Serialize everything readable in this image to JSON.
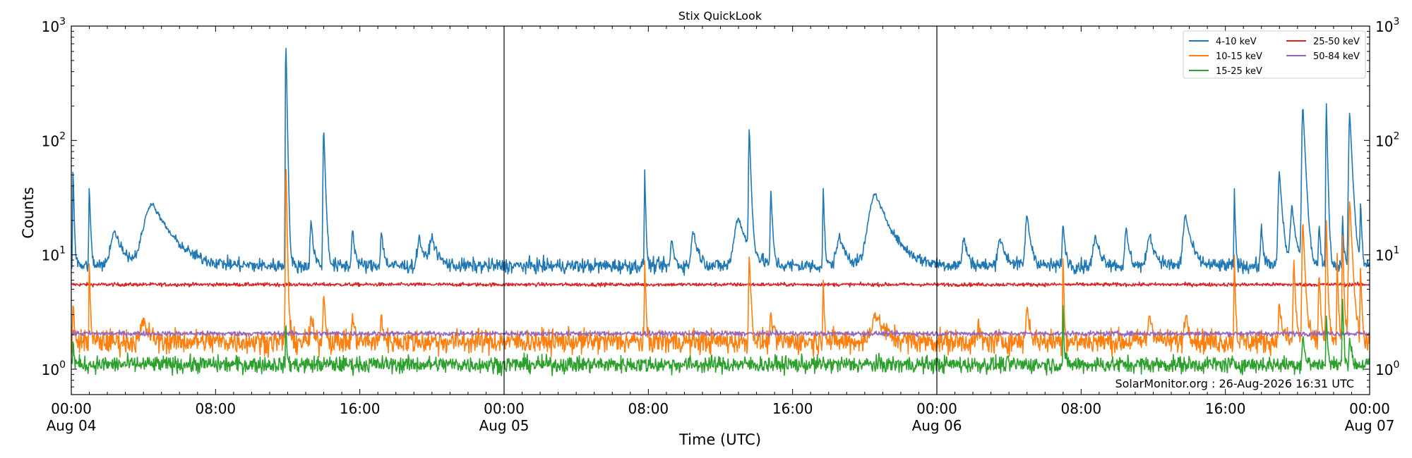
{
  "chart_data": {
    "type": "line",
    "title": "Stix QuickLook",
    "xlabel": "Time (UTC)",
    "ylabel": "Counts",
    "yscale": "log",
    "ylim": [
      0.6,
      1000
    ],
    "xlim_hours": [
      0,
      72
    ],
    "y_ticks": [
      {
        "value": 1,
        "base": "10",
        "exp": "0"
      },
      {
        "value": 10,
        "base": "10",
        "exp": "1"
      },
      {
        "value": 100,
        "base": "10",
        "exp": "2"
      },
      {
        "value": 1000,
        "base": "10",
        "exp": "3"
      }
    ],
    "x_ticks": [
      {
        "hour": 0,
        "time": "00:00",
        "date": "Aug 04"
      },
      {
        "hour": 8,
        "time": "08:00",
        "date": ""
      },
      {
        "hour": 16,
        "time": "16:00",
        "date": ""
      },
      {
        "hour": 24,
        "time": "00:00",
        "date": "Aug 05"
      },
      {
        "hour": 32,
        "time": "08:00",
        "date": ""
      },
      {
        "hour": 40,
        "time": "16:00",
        "date": ""
      },
      {
        "hour": 48,
        "time": "00:00",
        "date": "Aug 06"
      },
      {
        "hour": 56,
        "time": "08:00",
        "date": ""
      },
      {
        "hour": 64,
        "time": "16:00",
        "date": ""
      },
      {
        "hour": 72,
        "time": "00:00",
        "date": "Aug 07"
      }
    ],
    "day_boundaries_hours": [
      24,
      48
    ],
    "legend_position": "top-right",
    "credit": "SolarMonitor.org : 26-Aug-2026 16:31 UTC",
    "series": [
      {
        "name": "4-10 keV",
        "color": "#1f77b4",
        "baseline": 8,
        "noise": 0.06,
        "events": [
          [
            0.1,
            58,
            0.05
          ],
          [
            1.0,
            40,
            0.06
          ],
          [
            2.4,
            16,
            0.5
          ],
          [
            4.5,
            28,
            1.0
          ],
          [
            11.9,
            780,
            0.05
          ],
          [
            13.3,
            20,
            0.12
          ],
          [
            14.0,
            130,
            0.08
          ],
          [
            15.6,
            17,
            0.12
          ],
          [
            17.2,
            16,
            0.12
          ],
          [
            19.3,
            14,
            0.25
          ],
          [
            20.0,
            14,
            0.3
          ],
          [
            31.8,
            56,
            0.05
          ],
          [
            33.3,
            14,
            0.12
          ],
          [
            34.5,
            16,
            0.25
          ],
          [
            37.0,
            21,
            0.5
          ],
          [
            37.6,
            126,
            0.08
          ],
          [
            38.8,
            37,
            0.08
          ],
          [
            41.7,
            38,
            0.06
          ],
          [
            42.6,
            14,
            0.4
          ],
          [
            44.6,
            34,
            0.8
          ],
          [
            49.5,
            14,
            0.2
          ],
          [
            51.5,
            14,
            0.3
          ],
          [
            53.0,
            22,
            0.2
          ],
          [
            55.0,
            18,
            0.12
          ],
          [
            56.8,
            14,
            0.3
          ],
          [
            58.5,
            17,
            0.15
          ],
          [
            59.8,
            15,
            0.3
          ],
          [
            61.8,
            22,
            0.3
          ],
          [
            64.5,
            37,
            0.05
          ],
          [
            66.0,
            18,
            0.1
          ],
          [
            67.0,
            53,
            0.15
          ],
          [
            67.7,
            26,
            0.2
          ],
          [
            68.3,
            200,
            0.12
          ],
          [
            69.2,
            18,
            0.08
          ],
          [
            69.6,
            210,
            0.06
          ],
          [
            70.5,
            22,
            0.06
          ],
          [
            70.9,
            175,
            0.12
          ],
          [
            71.5,
            29,
            0.06
          ]
        ]
      },
      {
        "name": "10-15 keV",
        "color": "#ff7f0e",
        "baseline": 1.75,
        "noise": 0.1,
        "events": [
          [
            0.1,
            4,
            0.05
          ],
          [
            1.0,
            10,
            0.04
          ],
          [
            4.0,
            2.6,
            0.3
          ],
          [
            11.9,
            68,
            0.05
          ],
          [
            13.3,
            3,
            0.1
          ],
          [
            14.0,
            5,
            0.08
          ],
          [
            15.6,
            3,
            0.1
          ],
          [
            17.2,
            3,
            0.1
          ],
          [
            31.8,
            9,
            0.05
          ],
          [
            37.6,
            10,
            0.08
          ],
          [
            38.8,
            3.5,
            0.08
          ],
          [
            41.7,
            6,
            0.06
          ],
          [
            44.6,
            3,
            0.5
          ],
          [
            50.3,
            3,
            0.05
          ],
          [
            53.0,
            3.5,
            0.15
          ],
          [
            55.0,
            11,
            0.04
          ],
          [
            59.8,
            3,
            0.2
          ],
          [
            61.8,
            3,
            0.2
          ],
          [
            64.5,
            10,
            0.05
          ],
          [
            67.0,
            3.5,
            0.15
          ],
          [
            67.8,
            9,
            0.08
          ],
          [
            68.3,
            20,
            0.1
          ],
          [
            69.2,
            7,
            0.08
          ],
          [
            69.6,
            20,
            0.06
          ],
          [
            70.2,
            10,
            0.05
          ],
          [
            70.5,
            15,
            0.06
          ],
          [
            70.9,
            30,
            0.12
          ],
          [
            71.5,
            8,
            0.06
          ]
        ]
      },
      {
        "name": "15-25 keV",
        "color": "#2ca02c",
        "baseline": 1.1,
        "noise": 0.07,
        "events": [
          [
            0.1,
            1.8,
            0.05
          ],
          [
            11.9,
            2.5,
            0.05
          ],
          [
            55.0,
            4,
            0.04
          ],
          [
            68.3,
            2,
            0.1
          ],
          [
            69.6,
            3,
            0.06
          ],
          [
            70.5,
            4,
            0.06
          ],
          [
            70.9,
            2,
            0.08
          ]
        ]
      },
      {
        "name": "25-50 keV",
        "color": "#d62728",
        "baseline": 5.5,
        "noise": 0.015,
        "events": []
      },
      {
        "name": "50-84 keV",
        "color": "#9467bd",
        "baseline": 2.05,
        "noise": 0.02,
        "events": []
      }
    ]
  }
}
